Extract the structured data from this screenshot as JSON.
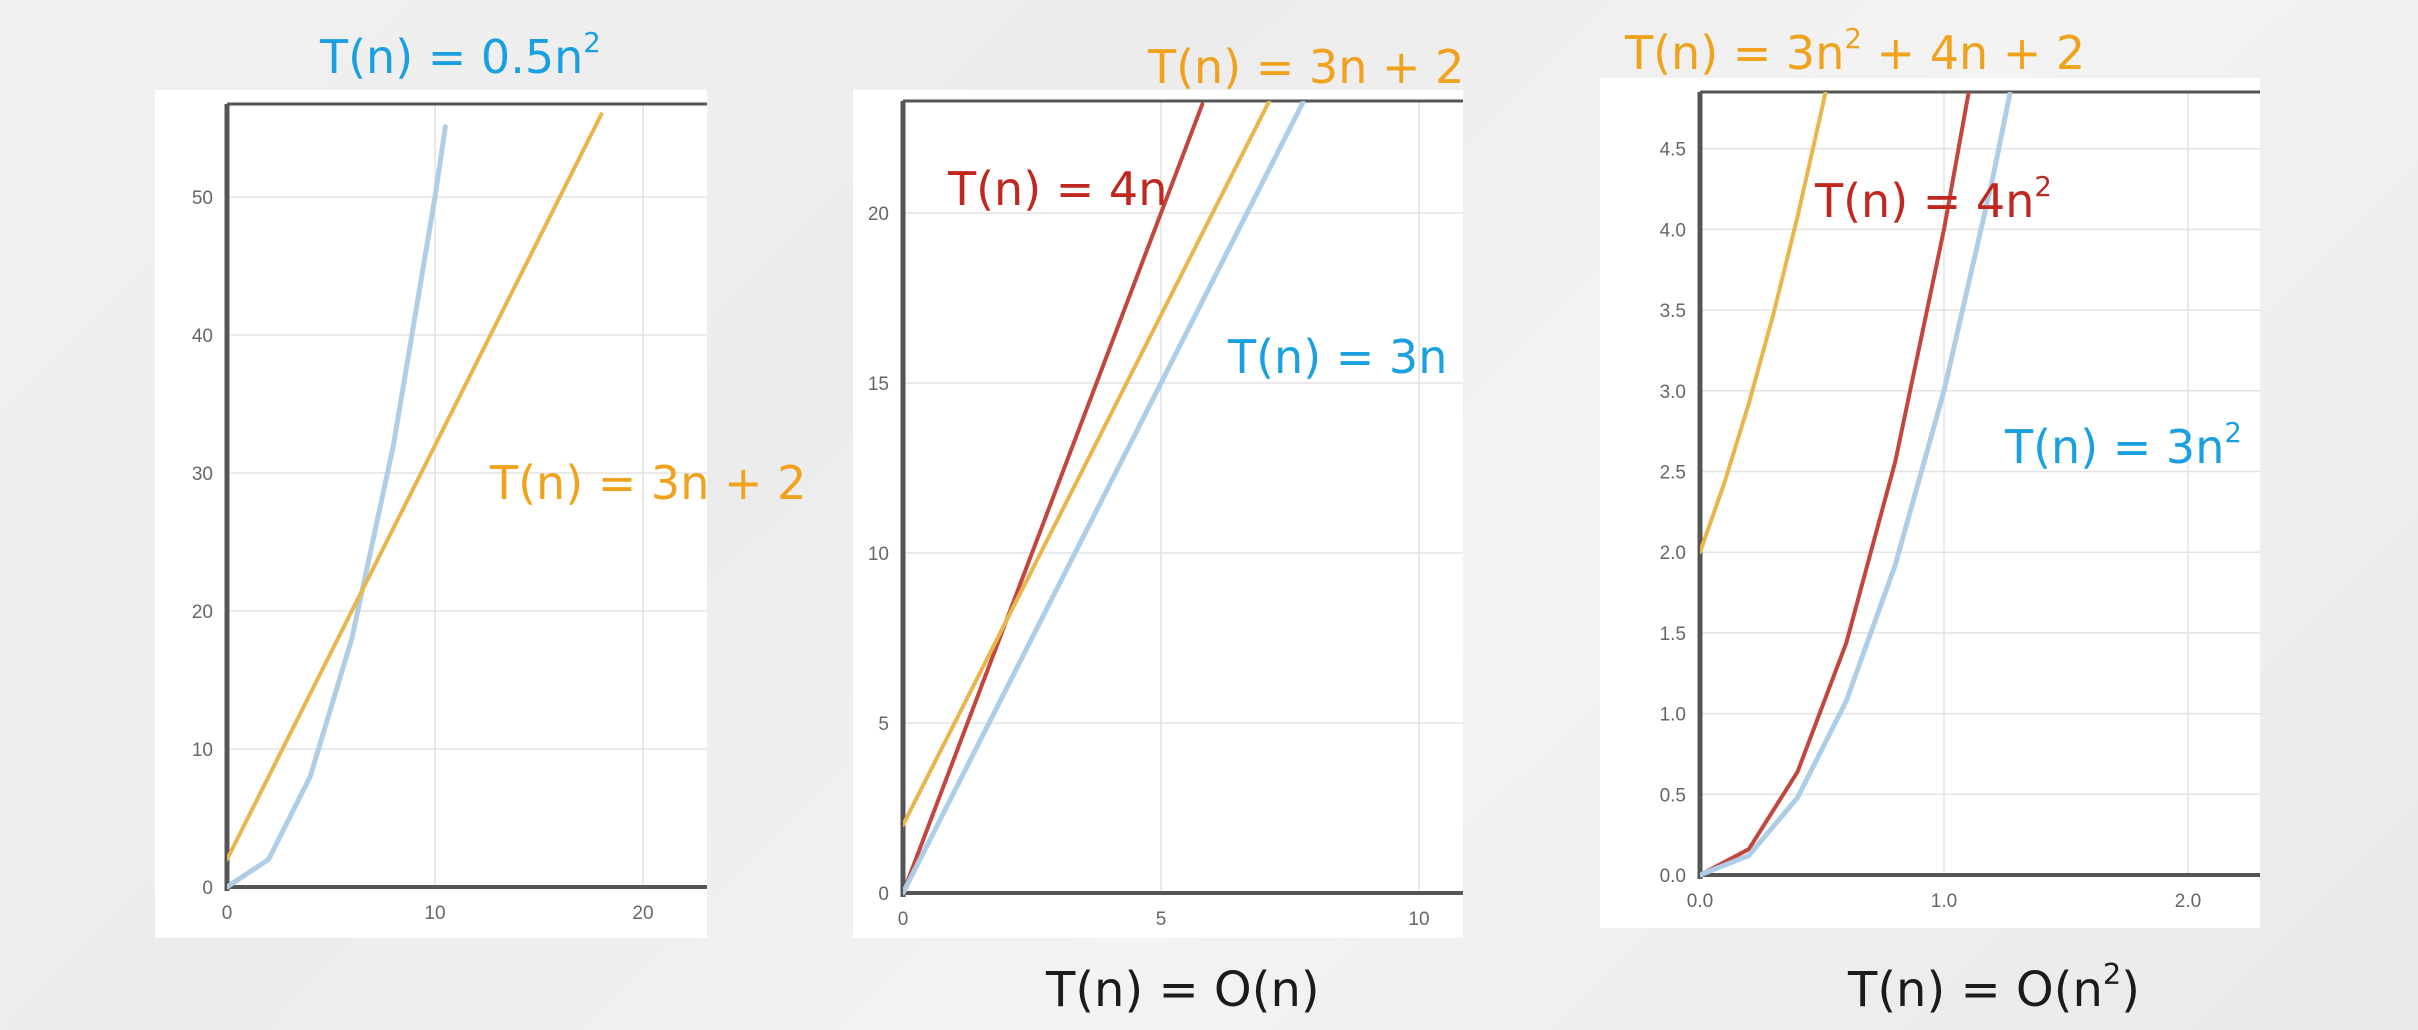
{
  "colors": {
    "blue": "#aecde6",
    "orange": "#e7b64c",
    "red": "#c3463e",
    "label_blue": "#1aa0e0",
    "label_orange": "#f0a21c",
    "label_red": "#c0271e",
    "grid": "#e3e3e3",
    "axis": "#555555"
  },
  "captions": {
    "linear_base": "T(n) = O(n)",
    "quadratic_base": "T(n) = O(n",
    "quadratic_exp": "2",
    "quadratic_close": ")"
  },
  "chart_data": [
    {
      "type": "line",
      "grid": true,
      "xlim": [
        0,
        23
      ],
      "ylim": [
        0,
        57
      ],
      "xticks": [
        "0",
        "10",
        "20"
      ],
      "yticks": [
        "0",
        "10",
        "20",
        "30",
        "40",
        "50"
      ],
      "series": [
        {
          "name": "T(n) = 0.5n²",
          "color_key": "blue",
          "x": [
            0,
            2,
            4,
            6,
            8,
            10,
            10.5
          ],
          "y": [
            0,
            2,
            8,
            18,
            32,
            50,
            55.1
          ]
        },
        {
          "name": "T(n) = 3n + 2",
          "color_key": "orange",
          "x": [
            0,
            18
          ],
          "y": [
            2,
            56
          ]
        }
      ],
      "labels": [
        {
          "base": "T(n) = 0.5n",
          "exp": "2",
          "color_key": "label_blue"
        },
        {
          "base": "T(n) = 3n + 2",
          "exp": "",
          "color_key": "label_orange"
        }
      ]
    },
    {
      "type": "line",
      "grid": true,
      "xlim": [
        0,
        10.8
      ],
      "ylim": [
        0,
        23.3
      ],
      "xticks": [
        "0",
        "5",
        "10"
      ],
      "yticks": [
        "0",
        "5",
        "10",
        "15",
        "20"
      ],
      "series": [
        {
          "name": "T(n) = 4n",
          "color_key": "red",
          "x": [
            0,
            5.8
          ],
          "y": [
            0,
            23.2
          ]
        },
        {
          "name": "T(n) = 3n + 2",
          "color_key": "orange",
          "x": [
            0,
            7.1
          ],
          "y": [
            2,
            23.3
          ]
        },
        {
          "name": "T(n) = 3n",
          "color_key": "blue",
          "x": [
            0,
            7.75
          ],
          "y": [
            0,
            23.25
          ]
        }
      ],
      "labels": [
        {
          "base": "T(n) = 3n + 2",
          "exp": "",
          "color_key": "label_orange"
        },
        {
          "base": "T(n) = 4n",
          "exp": "",
          "color_key": "label_red"
        },
        {
          "base": "T(n) = 3n",
          "exp": "",
          "color_key": "label_blue"
        }
      ]
    },
    {
      "type": "line",
      "grid": true,
      "xlim": [
        0,
        2.3
      ],
      "ylim": [
        0,
        4.85
      ],
      "xticks": [
        "0.0",
        "1.0",
        "2.0"
      ],
      "yticks": [
        "0.0",
        "0.5",
        "1.0",
        "1.5",
        "2.0",
        "2.5",
        "3.0",
        "3.5",
        "4.0",
        "4.5"
      ],
      "series": [
        {
          "name": "T(n) = 3n² + 4n + 2",
          "color_key": "orange",
          "x": [
            0,
            0.1,
            0.2,
            0.3,
            0.4,
            0.5,
            0.52
          ],
          "y": [
            2,
            2.43,
            2.92,
            3.47,
            4.08,
            4.75,
            4.89
          ]
        },
        {
          "name": "T(n) = 4n²",
          "color_key": "red",
          "x": [
            0,
            0.2,
            0.4,
            0.6,
            0.8,
            1.0,
            1.1
          ],
          "y": [
            0,
            0.16,
            0.64,
            1.44,
            2.56,
            4.0,
            4.84
          ]
        },
        {
          "name": "T(n) = 3n²",
          "color_key": "blue",
          "x": [
            0,
            0.2,
            0.4,
            0.6,
            0.8,
            1.0,
            1.2,
            1.27
          ],
          "y": [
            0,
            0.12,
            0.48,
            1.08,
            1.92,
            3.0,
            4.32,
            4.84
          ]
        }
      ],
      "labels": [
        {
          "base": "T(n) = 3n",
          "exp": "2",
          "tail": " + 4n + 2",
          "color_key": "label_orange"
        },
        {
          "base": "T(n) = 4n",
          "exp": "2",
          "color_key": "label_red"
        },
        {
          "base": "T(n) = 3n",
          "exp": "2",
          "color_key": "label_blue"
        }
      ]
    }
  ]
}
